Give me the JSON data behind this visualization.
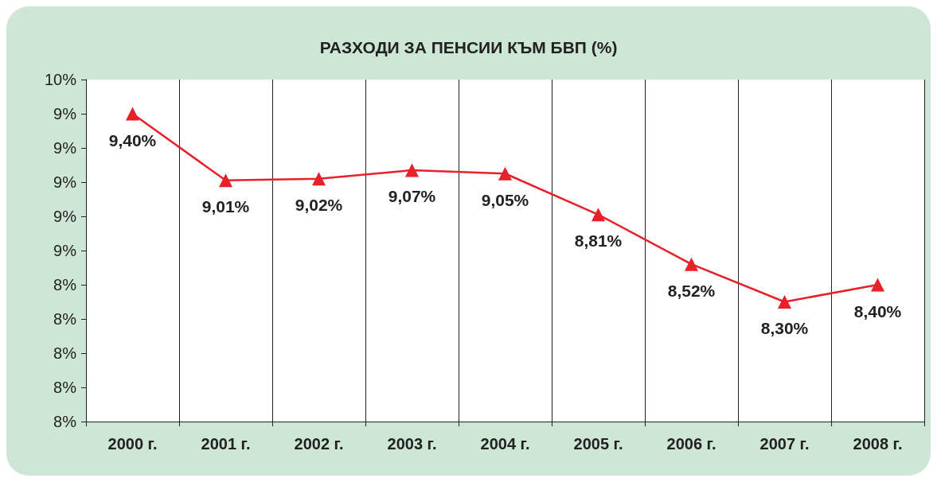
{
  "chart_data": {
    "type": "line",
    "title": "РАЗХОДИ ЗА ПЕНСИИ КЪМ БВП (%)",
    "categories": [
      "2000 г.",
      "2001 г.",
      "2002 г.",
      "2003 г.",
      "2004 г.",
      "2005 г.",
      "2006 г.",
      "2007 г.",
      "2008 г."
    ],
    "series": [
      {
        "color": "#e8202a",
        "values": [
          9.4,
          9.01,
          9.02,
          9.07,
          9.05,
          8.81,
          8.52,
          8.3,
          8.4
        ],
        "value_labels": [
          "9,40%",
          "9,01%",
          "9,02%",
          "9,07%",
          "9,05%",
          "8,81%",
          "8,52%",
          "8,30%",
          "8,40%"
        ]
      }
    ],
    "ylim": [
      7.6,
      9.6
    ],
    "yticks": [
      {
        "value": 7.6,
        "label": "8%"
      },
      {
        "value": 7.8,
        "label": "8%"
      },
      {
        "value": 8.0,
        "label": "8%"
      },
      {
        "value": 8.2,
        "label": "8%"
      },
      {
        "value": 8.4,
        "label": "8%"
      },
      {
        "value": 8.6,
        "label": "9%"
      },
      {
        "value": 8.8,
        "label": "9%"
      },
      {
        "value": 9.0,
        "label": "9%"
      },
      {
        "value": 9.2,
        "label": "9%"
      },
      {
        "value": 9.4,
        "label": "9%"
      },
      {
        "value": 9.6,
        "label": "10%"
      }
    ],
    "grid": "x",
    "marker": "triangle",
    "line_style": "solid"
  }
}
